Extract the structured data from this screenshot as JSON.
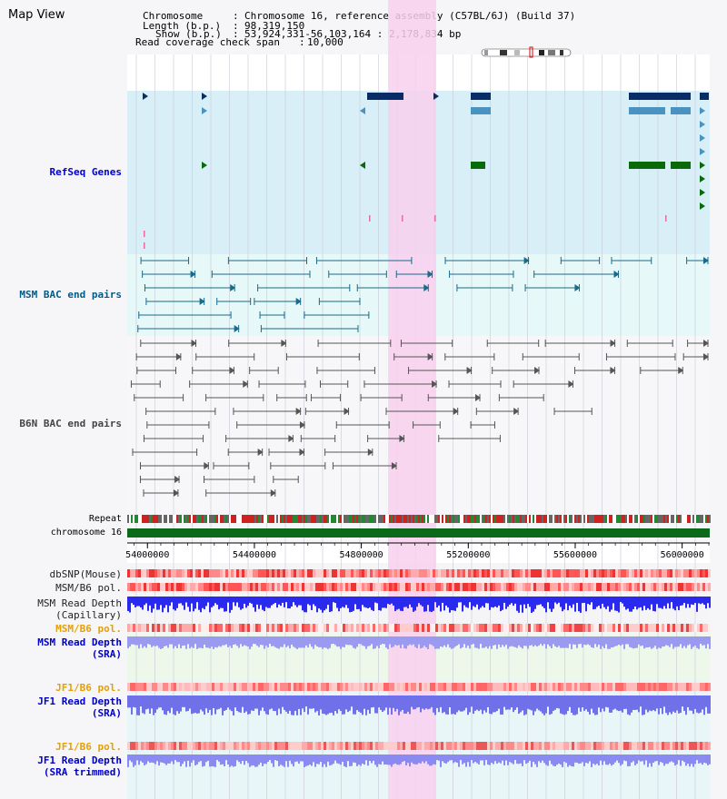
{
  "title": "Map View",
  "info": {
    "chromosome_label": "Chromosome",
    "chromosome_value": "Chromosome 16, reference assembly (C57BL/6J) (Build 37)",
    "length_label": "Length (b.p.)",
    "length_value": "98,319,150",
    "show_label": "Show (b.p.)",
    "show_value": "53,924,331-56,103,164 : 2,178,834 bp",
    "coverage_label": "Read coverage check span",
    "coverage_value": "10,000"
  },
  "ruler": {
    "start": 53924331,
    "end": 56103164,
    "ticks": [
      54000000,
      54400000,
      54800000,
      55200000,
      55600000,
      56000000
    ],
    "tick_labels": [
      "54000000",
      "54400000",
      "54800000",
      "55200000",
      "55600000",
      "56000000"
    ]
  },
  "highlight": {
    "start": 54900000,
    "end": 55080000,
    "color": "#f8d0ee"
  },
  "tracks": {
    "refseq": {
      "label": "RefSeq Genes",
      "color": "#0000cc"
    },
    "msm_bac": {
      "label": "MSM BAC end pairs",
      "color": "#005b8a"
    },
    "b6n_bac": {
      "label": "B6N BAC end pairs",
      "color": "#444444"
    },
    "repeat": {
      "label": "Repeat"
    },
    "chromosome": {
      "label": "chromosome 16"
    },
    "dbsnp": {
      "label": "dbSNP(Mouse)"
    },
    "msm_b6_pol_1": {
      "label": "MSM/B6 pol."
    },
    "msm_depth_cap": {
      "label": "MSM Read Depth\n(Capillary)"
    },
    "msm_b6_pol_2": {
      "label": "MSM/B6 pol.",
      "color": "#e6a000"
    },
    "msm_depth_sra": {
      "label": "MSM Read Depth\n(SRA)",
      "color": "#0000cc"
    },
    "jf1_b6_pol": {
      "label": "JF1/B6 pol.",
      "color": "#e6a000"
    },
    "jf1_depth_sra": {
      "label": "JF1 Read Depth\n(SRA)",
      "color": "#0000cc"
    },
    "jf1_b6_pol_2": {
      "label": "JF1/B6 pol.",
      "color": "#e6a000"
    },
    "jf1_depth_trim": {
      "label": "JF1 Read Depth\n(SRA trimmed)",
      "color": "#0000cc"
    }
  },
  "icons": {
    "ideogram": "chromosome-ideogram-icon"
  }
}
